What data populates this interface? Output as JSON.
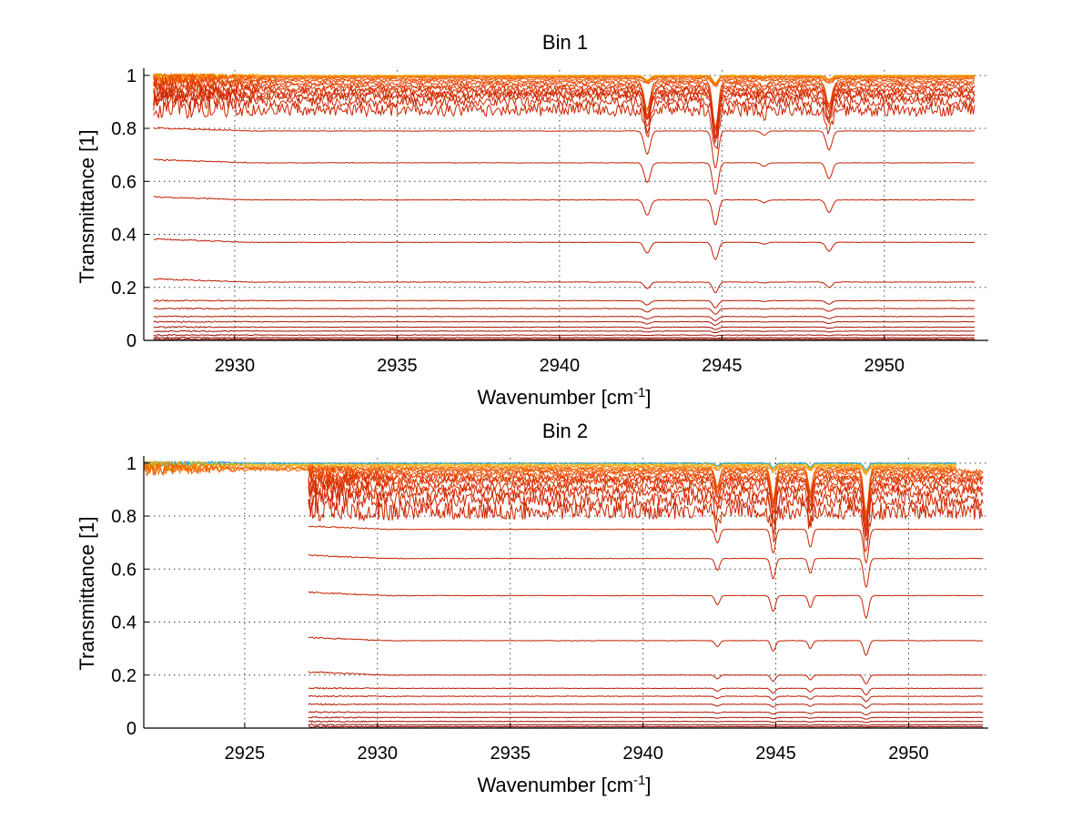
{
  "chart_data": [
    {
      "type": "line",
      "title": "Bin 1",
      "xlabel": "Wavenumber [cm",
      "xlabel_sup": "-1",
      "xlabel_tail": "]",
      "ylabel": "Transmittance [1]",
      "xlim": [
        2927.2,
        2953.2
      ],
      "ylim": [
        0,
        1.02
      ],
      "xticks": [
        2930,
        2935,
        2940,
        2945,
        2950
      ],
      "yticks": [
        0,
        0.2,
        0.4,
        0.6,
        0.8,
        1
      ],
      "ytick_labels": [
        "0",
        "0.2",
        "0.4",
        "0.6",
        "0.8",
        "1"
      ],
      "grid": true,
      "legend": "none",
      "x_range": [
        2927.5,
        2952.8
      ],
      "absorption_lines": [
        {
          "x": 2942.7,
          "width": 0.13,
          "depth": 0.11
        },
        {
          "x": 2944.8,
          "width": 0.12,
          "depth": 0.18
        },
        {
          "x": 2948.3,
          "width": 0.13,
          "depth": 0.09
        },
        {
          "x": 2946.3,
          "width": 0.12,
          "depth": 0.02
        }
      ],
      "series_levels": [
        1.0,
        0.998,
        0.996,
        0.994,
        0.99,
        0.985,
        0.978,
        0.97,
        0.96,
        0.95,
        0.94,
        0.93,
        0.92,
        0.9,
        0.87,
        0.79,
        0.67,
        0.53,
        0.37,
        0.22,
        0.15,
        0.12,
        0.09,
        0.07,
        0.05,
        0.035,
        0.02,
        0.01,
        0.004
      ],
      "series_colors": [
        "#f3b800",
        "#f59a00",
        "#f58400",
        "#f47000",
        "#f06000",
        "#ec5400",
        "#e84a00",
        "#e54000",
        "#e03a00",
        "#dc3400",
        "#d83000",
        "#d42c00",
        "#d02800",
        "#cd2600",
        "#ca2400",
        "#c82200",
        "#c52000",
        "#c21e00",
        "#bf1c00",
        "#bc1a00",
        "#b91800",
        "#b51600",
        "#b11400",
        "#ad1200",
        "#a91000",
        "#a40e00",
        "#9f0c00",
        "#990a00",
        "#930800"
      ]
    },
    {
      "type": "line",
      "title": "Bin 2",
      "xlabel": "Wavenumber [cm",
      "xlabel_sup": "-1",
      "xlabel_tail": "]",
      "ylabel": "Transmittance [1]",
      "xlim": [
        2921.2,
        2953.0
      ],
      "ylim": [
        0,
        1.02
      ],
      "xticks": [
        2925,
        2930,
        2935,
        2940,
        2945,
        2950
      ],
      "yticks": [
        0,
        0.2,
        0.4,
        0.6,
        0.8,
        1
      ],
      "ytick_labels": [
        "0",
        "0.2",
        "0.4",
        "0.6",
        "0.8",
        "1"
      ],
      "grid": true,
      "legend": "none",
      "x_range": [
        2927.4,
        2952.8
      ],
      "x_range_upper": [
        2921.2,
        2951.8
      ],
      "absorption_lines": [
        {
          "x": 2942.8,
          "width": 0.12,
          "depth": 0.07
        },
        {
          "x": 2944.9,
          "width": 0.12,
          "depth": 0.12
        },
        {
          "x": 2946.3,
          "width": 0.11,
          "depth": 0.09
        },
        {
          "x": 2948.4,
          "width": 0.13,
          "depth": 0.17
        }
      ],
      "series_levels": [
        1.0,
        0.998,
        0.995,
        0.99,
        0.985,
        0.98,
        0.975,
        0.97,
        0.96,
        0.95,
        0.94,
        0.93,
        0.91,
        0.89,
        0.86,
        0.82,
        0.75,
        0.64,
        0.5,
        0.33,
        0.2,
        0.15,
        0.12,
        0.09,
        0.06,
        0.04,
        0.025,
        0.012,
        0.005
      ],
      "series_colors": [
        "#1e90d8",
        "#2ab0c0",
        "#f3b800",
        "#f59a00",
        "#f58400",
        "#f47000",
        "#f06000",
        "#ec5400",
        "#e84a00",
        "#e54000",
        "#e03a00",
        "#dc3400",
        "#d83000",
        "#d42c00",
        "#d02800",
        "#cd2600",
        "#ca2400",
        "#c82200",
        "#c52000",
        "#c21e00",
        "#bf1c00",
        "#bc1a00",
        "#b91800",
        "#b51600",
        "#b11400",
        "#ad1200",
        "#a40e00",
        "#990a00",
        "#930800"
      ]
    }
  ]
}
